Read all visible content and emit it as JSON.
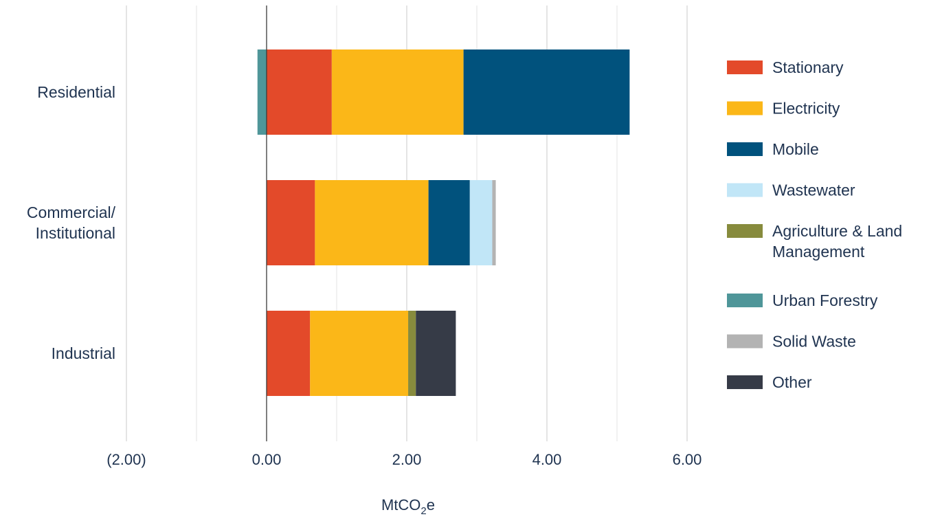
{
  "chart_data": {
    "type": "bar",
    "orientation": "horizontal",
    "stacked": true,
    "categories": [
      "Residential",
      "Commercial/\nInstitutional",
      "Industrial"
    ],
    "series": [
      {
        "name": "Stationary",
        "color": "#e34a2a",
        "values": [
          0.93,
          0.69,
          0.62
        ]
      },
      {
        "name": "Electricity",
        "color": "#fbb718",
        "values": [
          1.88,
          1.62,
          1.4
        ]
      },
      {
        "name": "Mobile",
        "color": "#01527d",
        "values": [
          2.37,
          0.59,
          0
        ]
      },
      {
        "name": "Wastewater",
        "color": "#c1e6f7",
        "values": [
          0,
          0.32,
          0
        ]
      },
      {
        "name": "Agriculture & Land\nManagement",
        "color": "#878b3d",
        "values": [
          0,
          0,
          0.11
        ]
      },
      {
        "name": "Urban Forestry",
        "color": "#4f9699",
        "values": [
          -0.13,
          0,
          0
        ]
      },
      {
        "name": "Solid Waste",
        "color": "#b3b3b3",
        "values": [
          0,
          0.05,
          0
        ]
      },
      {
        "name": "Other",
        "color": "#363b47",
        "values": [
          0,
          0,
          0.57
        ]
      }
    ],
    "xlim": [
      -2,
      6
    ],
    "xticks": [
      -2,
      0,
      2,
      4,
      6
    ],
    "xtick_labels": [
      "(2.00)",
      "0.00",
      "2.00",
      "4.00",
      "6.00"
    ],
    "xlabel": "MtCO",
    "xlabel_sub": "2",
    "xlabel_suffix": "e",
    "grid": true,
    "legend_position": "right"
  }
}
